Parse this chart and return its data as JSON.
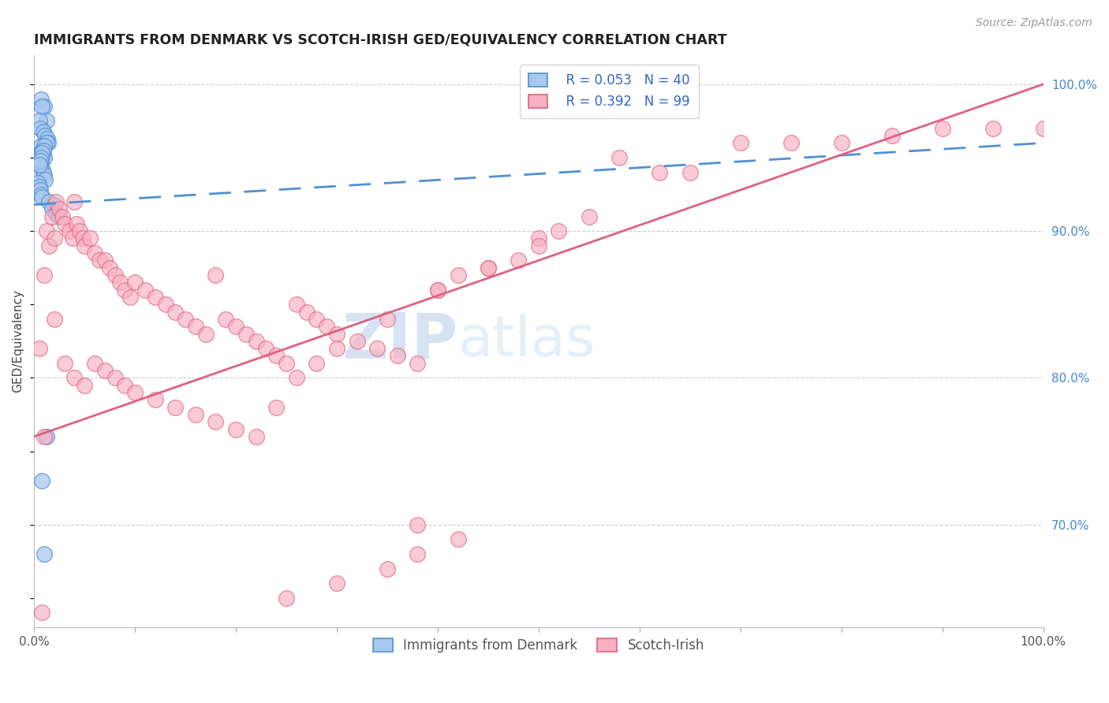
{
  "title": "IMMIGRANTS FROM DENMARK VS SCOTCH-IRISH GED/EQUIVALENCY CORRELATION CHART",
  "source": "Source: ZipAtlas.com",
  "ylabel": "GED/Equivalency",
  "ytick_labels": [
    "100.0%",
    "90.0%",
    "80.0%",
    "70.0%"
  ],
  "ytick_positions": [
    1.0,
    0.9,
    0.8,
    0.7
  ],
  "legend_blue_r": "R = 0.053",
  "legend_blue_n": "N = 40",
  "legend_pink_r": "R = 0.392",
  "legend_pink_n": "N = 99",
  "blue_fill": "#a8c8f0",
  "blue_edge": "#5090d0",
  "pink_fill": "#f8b0c0",
  "pink_edge": "#e06080",
  "blue_line_color": "#5090d0",
  "pink_line_color": "#e06080",
  "watermark_zip": "ZIP",
  "watermark_atlas": "atlas",
  "xlim": [
    0.0,
    1.0
  ],
  "ylim": [
    0.63,
    1.02
  ],
  "blue_line_x": [
    0.0,
    1.0
  ],
  "blue_line_y": [
    0.918,
    0.96
  ],
  "pink_line_x": [
    0.0,
    1.0
  ],
  "pink_line_y": [
    0.76,
    1.0
  ],
  "blue_scatter_x": [
    0.007,
    0.01,
    0.008,
    0.012,
    0.005,
    0.006,
    0.009,
    0.011,
    0.013,
    0.014,
    0.007,
    0.008,
    0.009,
    0.01,
    0.006,
    0.007,
    0.008,
    0.009,
    0.01,
    0.011,
    0.004,
    0.005,
    0.006,
    0.007,
    0.008,
    0.012,
    0.01,
    0.009,
    0.008,
    0.007,
    0.006,
    0.005,
    0.015,
    0.02,
    0.018,
    0.022,
    0.025,
    0.012,
    0.008,
    0.01
  ],
  "blue_scatter_y": [
    0.99,
    0.985,
    0.985,
    0.975,
    0.975,
    0.97,
    0.968,
    0.965,
    0.963,
    0.96,
    0.958,
    0.955,
    0.952,
    0.95,
    0.948,
    0.945,
    0.943,
    0.94,
    0.938,
    0.935,
    0.933,
    0.93,
    0.928,
    0.925,
    0.923,
    0.96,
    0.958,
    0.955,
    0.953,
    0.95,
    0.948,
    0.945,
    0.92,
    0.918,
    0.915,
    0.912,
    0.91,
    0.76,
    0.73,
    0.68
  ],
  "pink_scatter_x": [
    0.005,
    0.008,
    0.01,
    0.01,
    0.012,
    0.015,
    0.018,
    0.02,
    0.022,
    0.025,
    0.028,
    0.03,
    0.035,
    0.038,
    0.04,
    0.042,
    0.045,
    0.048,
    0.05,
    0.055,
    0.06,
    0.065,
    0.07,
    0.075,
    0.08,
    0.085,
    0.09,
    0.095,
    0.1,
    0.11,
    0.12,
    0.13,
    0.14,
    0.15,
    0.16,
    0.17,
    0.18,
    0.19,
    0.2,
    0.21,
    0.22,
    0.23,
    0.24,
    0.25,
    0.26,
    0.27,
    0.28,
    0.29,
    0.3,
    0.32,
    0.34,
    0.36,
    0.38,
    0.4,
    0.42,
    0.45,
    0.48,
    0.5,
    0.52,
    0.55,
    0.58,
    0.62,
    0.65,
    0.7,
    0.75,
    0.8,
    0.85,
    0.9,
    0.95,
    1.0,
    0.02,
    0.03,
    0.04,
    0.05,
    0.06,
    0.07,
    0.08,
    0.09,
    0.1,
    0.12,
    0.14,
    0.16,
    0.18,
    0.2,
    0.22,
    0.24,
    0.26,
    0.28,
    0.3,
    0.35,
    0.4,
    0.45,
    0.5,
    0.38,
    0.42,
    0.38,
    0.35,
    0.3,
    0.25
  ],
  "pink_scatter_y": [
    0.82,
    0.64,
    0.87,
    0.76,
    0.9,
    0.89,
    0.91,
    0.895,
    0.92,
    0.915,
    0.91,
    0.905,
    0.9,
    0.895,
    0.92,
    0.905,
    0.9,
    0.895,
    0.89,
    0.895,
    0.885,
    0.88,
    0.88,
    0.875,
    0.87,
    0.865,
    0.86,
    0.855,
    0.865,
    0.86,
    0.855,
    0.85,
    0.845,
    0.84,
    0.835,
    0.83,
    0.87,
    0.84,
    0.835,
    0.83,
    0.825,
    0.82,
    0.815,
    0.81,
    0.85,
    0.845,
    0.84,
    0.835,
    0.83,
    0.825,
    0.82,
    0.815,
    0.81,
    0.86,
    0.87,
    0.875,
    0.88,
    0.895,
    0.9,
    0.91,
    0.95,
    0.94,
    0.94,
    0.96,
    0.96,
    0.96,
    0.965,
    0.97,
    0.97,
    0.97,
    0.84,
    0.81,
    0.8,
    0.795,
    0.81,
    0.805,
    0.8,
    0.795,
    0.79,
    0.785,
    0.78,
    0.775,
    0.77,
    0.765,
    0.76,
    0.78,
    0.8,
    0.81,
    0.82,
    0.84,
    0.86,
    0.875,
    0.89,
    0.7,
    0.69,
    0.68,
    0.67,
    0.66,
    0.65
  ]
}
